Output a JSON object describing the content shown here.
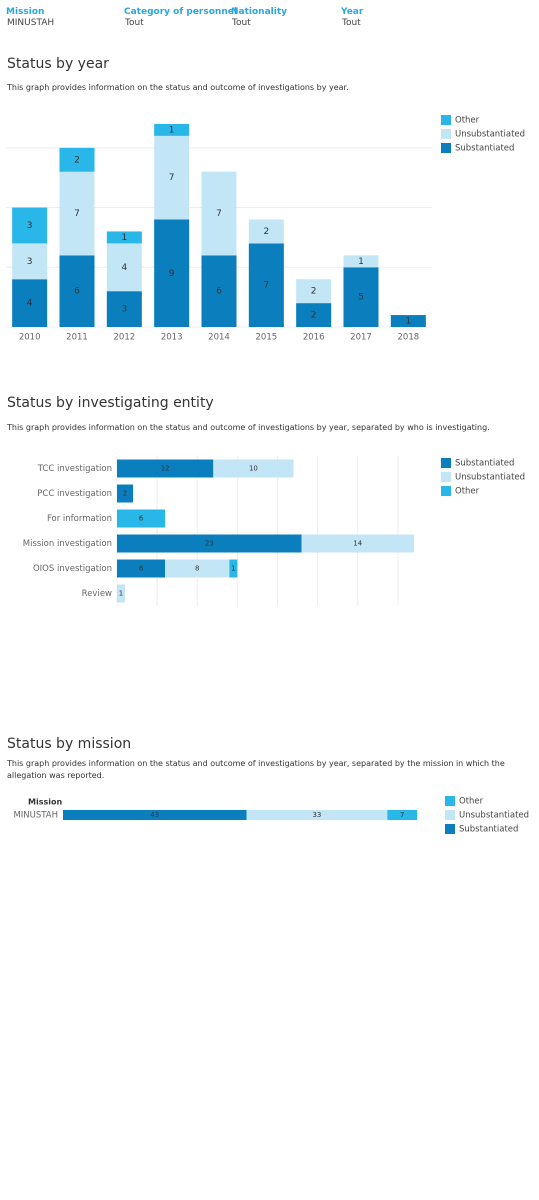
{
  "filters": [
    {
      "label": "Mission",
      "value": "MINUSTAH"
    },
    {
      "label": "Category of personnel",
      "value": "Tout"
    },
    {
      "label": "Nationality",
      "value": "Tout"
    },
    {
      "label": "Year",
      "value": "Tout"
    }
  ],
  "chart_data": [
    {
      "type": "bar",
      "title": "Status by year",
      "subtitle": "This graph provides information on the status and outcome of investigations by year.",
      "categories": [
        "2010",
        "2011",
        "2012",
        "2013",
        "2014",
        "2015",
        "2016",
        "2017",
        "2018"
      ],
      "series": [
        {
          "name": "Substantiated",
          "color": "#0b7fbd",
          "values": [
            4,
            6,
            3,
            9,
            6,
            7,
            2,
            5,
            1
          ]
        },
        {
          "name": "Unsubstantiated",
          "color": "#c3e6f7",
          "values": [
            3,
            7,
            4,
            7,
            7,
            2,
            2,
            1,
            null
          ]
        },
        {
          "name": "Other",
          "color": "#29b6e8",
          "values": [
            3,
            2,
            1,
            1,
            null,
            null,
            null,
            null,
            null
          ]
        }
      ],
      "ylim": [
        0,
        18
      ],
      "yticks": [
        0,
        5,
        10,
        15
      ],
      "grid": true,
      "legend": "right",
      "legend_reversed": true
    },
    {
      "type": "barh",
      "title": "Status by investigating entity",
      "subtitle": "This graph provides information on the status and outcome of investigations by year, separated by who is investigating.",
      "categories": [
        "TCC investigation",
        "PCC investigation",
        "For information",
        "Mission investigation",
        "OIOS investigation",
        "Review"
      ],
      "series": [
        {
          "name": "Substantiated",
          "color": "#0b7fbd",
          "values": [
            12,
            2,
            null,
            23,
            6,
            null
          ]
        },
        {
          "name": "Unsubstantiated",
          "color": "#c3e6f7",
          "values": [
            10,
            null,
            null,
            14,
            8,
            1
          ]
        },
        {
          "name": "Other",
          "color": "#29b6e8",
          "values": [
            null,
            null,
            6,
            null,
            1,
            null
          ]
        }
      ],
      "xlim": [
        0,
        39
      ],
      "xticks": [
        0,
        5,
        10,
        15,
        20,
        25,
        30,
        35
      ],
      "grid": true,
      "legend": "right",
      "legend_reversed": false
    },
    {
      "type": "barh",
      "title": "Status by mission",
      "subtitle": "This graph provides information on the status and outcome of investigations by year, separated by the mission in which the allegation was reported.",
      "category_label": "Mission",
      "categories": [
        "MINUSTAH"
      ],
      "series": [
        {
          "name": "Substantiated",
          "color": "#0b7fbd",
          "values": [
            43
          ]
        },
        {
          "name": "Unsubstantiated",
          "color": "#c3e6f7",
          "values": [
            33
          ]
        },
        {
          "name": "Other",
          "color": "#29b6e8",
          "values": [
            7
          ]
        }
      ],
      "xlim": [
        0,
        86
      ],
      "grid": false,
      "legend": "right",
      "legend_reversed": true
    }
  ]
}
